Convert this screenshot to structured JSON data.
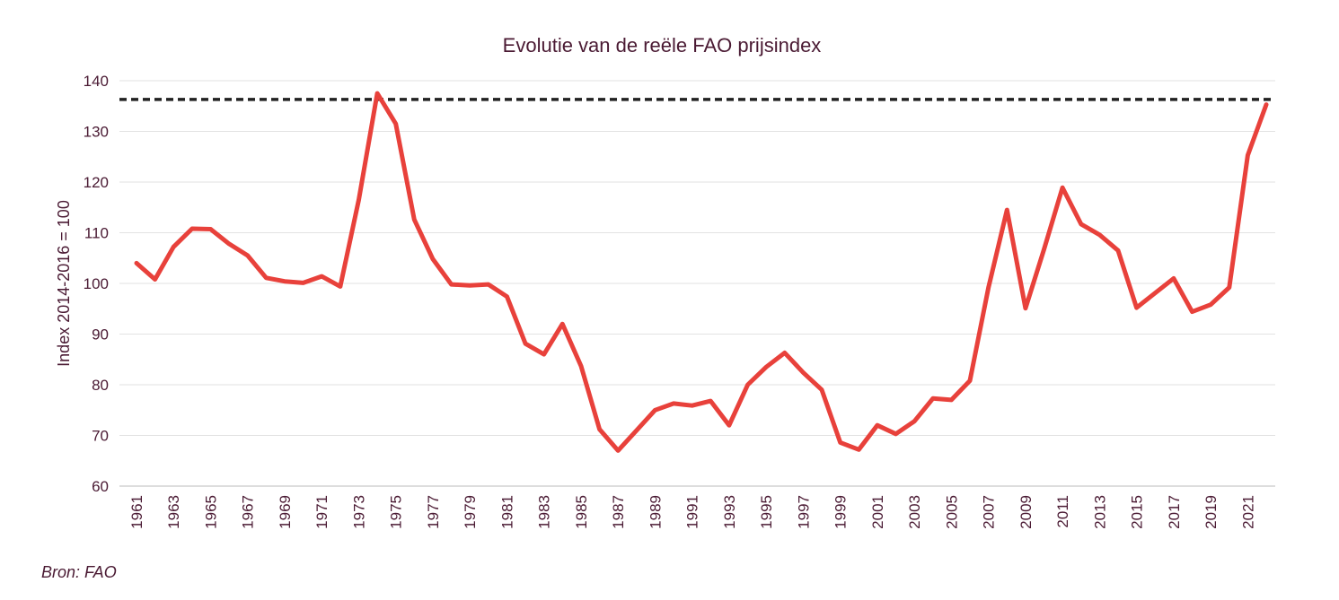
{
  "source": "Bron: FAO",
  "chart_data": {
    "type": "line",
    "title": "Evolutie van de reële FAO prijsindex",
    "xlabel": "",
    "ylabel": "Index 2014-2016 = 100",
    "ylim": [
      60,
      140
    ],
    "yticks": [
      60,
      70,
      80,
      90,
      100,
      110,
      120,
      130,
      140
    ],
    "xlim": [
      1961,
      2022
    ],
    "xticks": [
      1961,
      1963,
      1965,
      1967,
      1969,
      1971,
      1973,
      1975,
      1977,
      1979,
      1981,
      1983,
      1985,
      1987,
      1989,
      1991,
      1993,
      1995,
      1997,
      1999,
      2001,
      2003,
      2005,
      2007,
      2009,
      2011,
      2013,
      2015,
      2017,
      2019,
      2021
    ],
    "grid": true,
    "legend": "none",
    "line_color": "#e8413b",
    "reference_line": {
      "value": 136.3,
      "style": "dashed",
      "color": "#222222"
    },
    "series": [
      {
        "x": [
          1961,
          1962,
          1963,
          1964,
          1965,
          1966,
          1967,
          1968,
          1969,
          1970,
          1971,
          1972,
          1973,
          1974,
          1975,
          1976,
          1977,
          1978,
          1979,
          1980,
          1981,
          1982,
          1983,
          1984,
          1985,
          1986,
          1987,
          1988,
          1989,
          1990,
          1991,
          1992,
          1993,
          1994,
          1995,
          1996,
          1997,
          1998,
          1999,
          2000,
          2001,
          2002,
          2003,
          2004,
          2005,
          2006,
          2007,
          2008,
          2009,
          2010,
          2011,
          2012,
          2013,
          2014,
          2015,
          2016,
          2017,
          2018,
          2019,
          2020,
          2021,
          2022
        ],
        "values": [
          104,
          100.8,
          107.2,
          110.8,
          110.7,
          107.8,
          105.5,
          101.1,
          100.4,
          100.1,
          101.4,
          99.4,
          116.5,
          137.5,
          131.5,
          112.6,
          104.8,
          99.8,
          99.6,
          99.8,
          97.4,
          88.1,
          86,
          92,
          83.7,
          71.2,
          67,
          71,
          75,
          76.3,
          75.9,
          76.8,
          72,
          80,
          83.5,
          86.3,
          82.4,
          79,
          68.6,
          67.2,
          72,
          70.3,
          72.8,
          77.3,
          77,
          80.8,
          99.2,
          114.5,
          95.1,
          106.7,
          118.9,
          111.7,
          109.6,
          106.5,
          95.2,
          98.1,
          101,
          94.4,
          95.8,
          99.2,
          125.3,
          135.3
        ]
      }
    ]
  }
}
